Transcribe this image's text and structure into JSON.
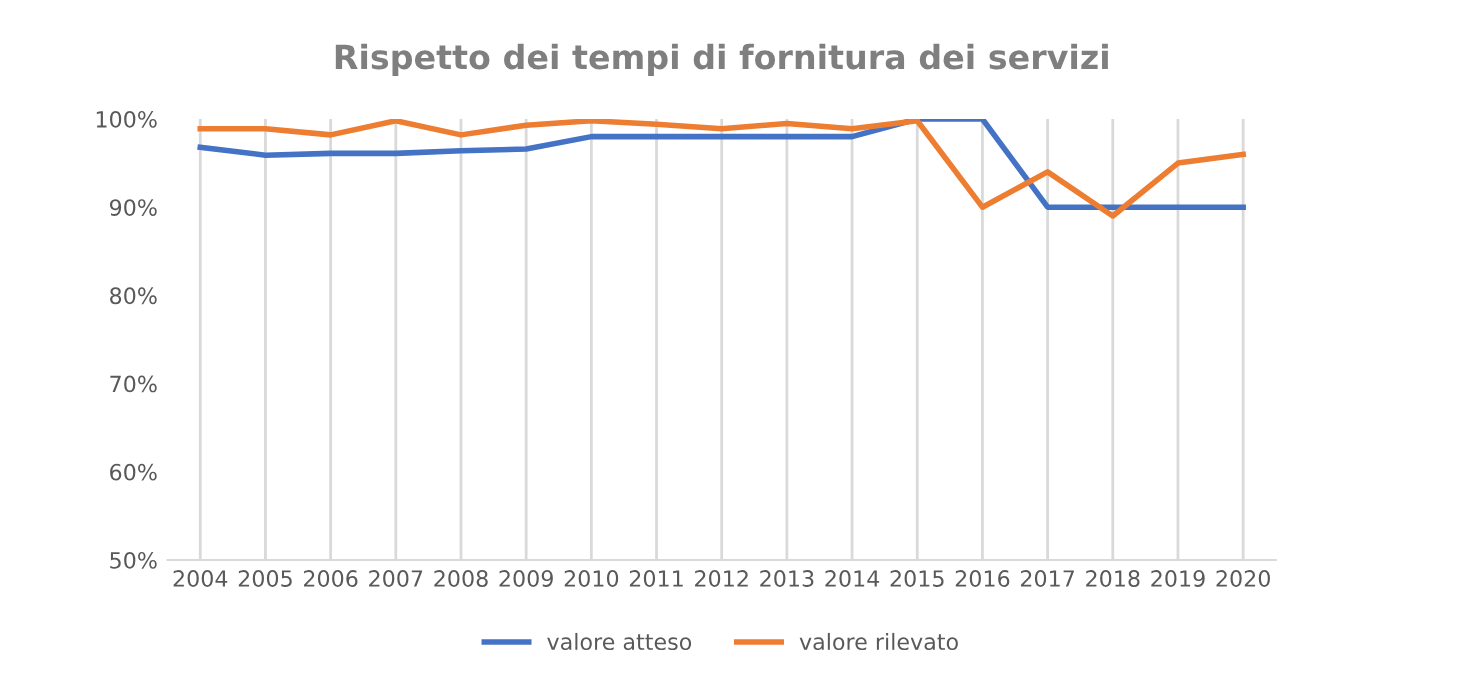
{
  "chart_data": {
    "type": "line",
    "title": "Rispetto dei tempi di fornitura dei servizi",
    "categories": [
      "2004",
      "2005",
      "2006",
      "2007",
      "2008",
      "2009",
      "2010",
      "2011",
      "2012",
      "2013",
      "2014",
      "2015",
      "2016",
      "2017",
      "2018",
      "2019",
      "2020"
    ],
    "series": [
      {
        "name": "valore atteso",
        "color": "#4472c4",
        "values": [
          96.8,
          95.9,
          96.1,
          96.1,
          96.4,
          96.6,
          98,
          98,
          98,
          98,
          98,
          100,
          100,
          90,
          90,
          90,
          90
        ]
      },
      {
        "name": "valore rilevato",
        "color": "#ed7d31",
        "values": [
          98.9,
          98.9,
          98.2,
          99.8,
          98.2,
          99.3,
          99.8,
          99.4,
          98.9,
          99.5,
          98.9,
          99.8,
          90,
          94,
          89,
          95,
          96
        ]
      }
    ],
    "ylim": [
      50,
      100
    ],
    "yticks": [
      {
        "value": 50,
        "label": "50%"
      },
      {
        "value": 60,
        "label": "60%"
      },
      {
        "value": 70,
        "label": "70%"
      },
      {
        "value": 80,
        "label": "80%"
      },
      {
        "value": 90,
        "label": "90%"
      },
      {
        "value": 100,
        "label": "100%"
      }
    ],
    "grid": "x",
    "legend": "bottom",
    "marker": "none",
    "line_style": "solid"
  }
}
